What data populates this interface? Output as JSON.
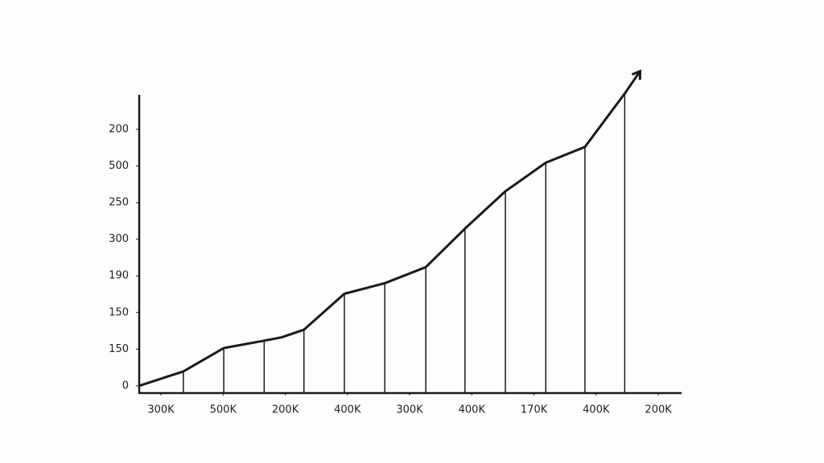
{
  "chart_data": {
    "type": "line",
    "color": "#1a1a1a",
    "x": [
      -0.35,
      0.36,
      1.01,
      1.66,
      1.94,
      2.3,
      2.95,
      3.6,
      4.26,
      4.89,
      5.54,
      6.19,
      6.82,
      7.46,
      7.7
    ],
    "values": [
      0,
      0.39,
      1.03,
      1.23,
      1.32,
      1.53,
      2.51,
      2.8,
      3.24,
      4.29,
      5.31,
      6.09,
      6.52,
      7.98,
      8.57
    ],
    "xlim": [
      -0.35,
      8.4
    ],
    "ylim": [
      -0.2,
      8.25
    ],
    "xticks": [
      {
        "value": 0,
        "label": "300K"
      },
      {
        "value": 1,
        "label": "500K"
      },
      {
        "value": 2,
        "label": "200K"
      },
      {
        "value": 3,
        "label": "400K"
      },
      {
        "value": 4,
        "label": "300K"
      },
      {
        "value": 5,
        "label": "400K"
      },
      {
        "value": 6,
        "label": "170K"
      },
      {
        "value": 7,
        "label": "400K"
      },
      {
        "value": 8,
        "label": "200K"
      }
    ],
    "yticks": [
      0,
      {
        "value": 1,
        "label": "150"
      },
      {
        "value": 2,
        "label": "150"
      },
      {
        "value": 3,
        "label": "190"
      },
      {
        "value": 4,
        "label": "300"
      },
      {
        "value": 5,
        "label": "250"
      },
      {
        "value": 6,
        "label": "500"
      },
      {
        "value": 7,
        "label": "200"
      }
    ],
    "grid": false
  }
}
